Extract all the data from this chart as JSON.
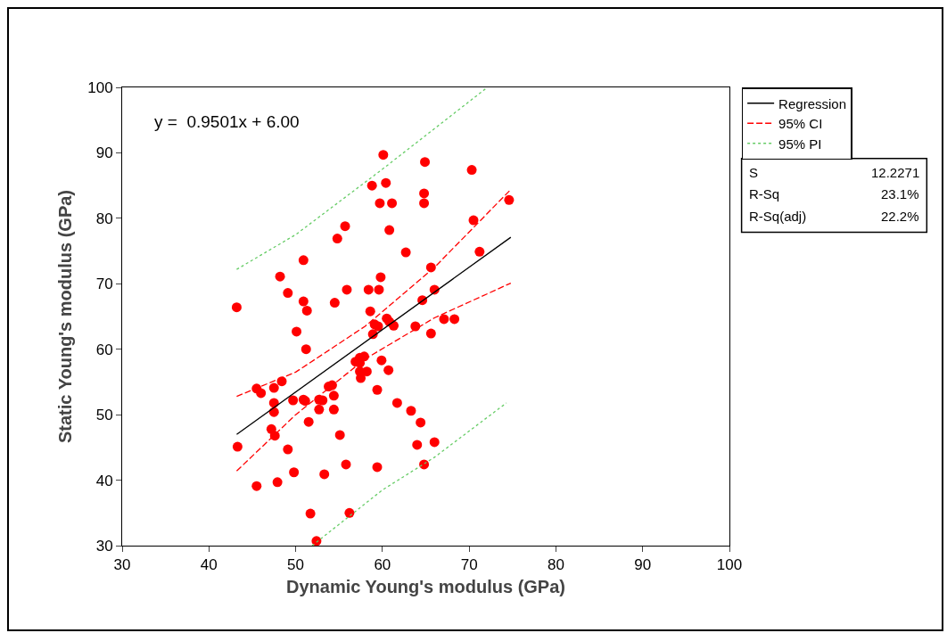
{
  "chart_data": {
    "type": "scatter",
    "xlabel": "Dynamic Young's modulus (GPa)",
    "ylabel": "Static Young's modulus (GPa)",
    "xlim": [
      30,
      100
    ],
    "xticks": [
      30,
      40,
      50,
      60,
      70,
      80,
      90,
      100
    ],
    "ylim": [
      30,
      100
    ],
    "yticks": [
      30,
      40,
      50,
      60,
      70,
      80,
      90,
      100
    ],
    "grid": false,
    "legend": "top right",
    "annotations": [
      "y =  0.9501x + 6.00",
      "S",
      "12.2271",
      "R-Sq",
      "23.1%",
      "R-Sq(adj)",
      "22.2%"
    ],
    "series": [
      {
        "marker": "circle",
        "color": "#ff0000",
        "x": [
          43.2,
          43.3,
          45.5,
          46.0,
          45.5,
          47.5,
          47.5,
          47.5,
          47.2,
          47.6,
          47.9,
          48.2,
          48.4,
          49.1,
          49.1,
          49.7,
          49.8,
          50.1,
          50.9,
          50.9,
          51.3,
          51.2,
          50.9,
          51.1,
          51.5,
          51.7,
          52.4,
          52.7,
          52.7,
          53.1,
          53.3,
          53.8,
          54.2,
          54.5,
          54.4,
          54.4,
          54.8,
          55.1,
          55.7,
          55.9,
          55.8,
          56.2,
          56.9,
          57.4,
          57.4,
          57.4,
          57.5,
          57.9,
          58.2,
          58.4,
          58.6,
          58.8,
          58.9,
          59.1,
          59.4,
          59.4,
          59.5,
          59.6,
          59.7,
          59.8,
          59.9,
          60.1,
          60.4,
          60.5,
          60.8,
          60.8,
          60.7,
          61.1,
          61.3,
          61.7,
          62.7,
          63.3,
          63.8,
          64.0,
          64.4,
          64.6,
          64.8,
          64.8,
          64.8,
          64.9,
          65.6,
          65.6,
          66.0,
          66.0,
          67.1,
          68.3,
          70.3,
          70.5,
          71.2,
          74.6
        ],
        "values": [
          66.4,
          45.1,
          54.0,
          53.3,
          39.1,
          54.1,
          51.8,
          50.4,
          47.8,
          46.8,
          39.7,
          71.1,
          55.1,
          68.6,
          44.7,
          52.2,
          41.2,
          62.7,
          73.6,
          67.3,
          65.9,
          60.0,
          52.3,
          52.1,
          48.9,
          34.9,
          30.7,
          52.3,
          50.8,
          52.2,
          40.9,
          54.3,
          54.5,
          67.1,
          52.9,
          50.8,
          76.9,
          46.9,
          78.8,
          69.1,
          42.4,
          35.0,
          58.1,
          58.7,
          57.9,
          56.6,
          55.6,
          58.9,
          56.6,
          69.1,
          65.8,
          85.0,
          62.3,
          63.8,
          53.8,
          42.0,
          63.5,
          69.1,
          82.3,
          71.0,
          58.3,
          89.7,
          85.4,
          64.7,
          64.2,
          78.2,
          56.8,
          82.3,
          63.6,
          51.8,
          74.8,
          50.6,
          63.5,
          45.4,
          48.8,
          67.5,
          42.4,
          83.8,
          82.3,
          88.6,
          72.5,
          62.4,
          69.1,
          45.8,
          64.6,
          64.6,
          87.4,
          79.7,
          74.9,
          82.8
        ]
      },
      {
        "type": "line",
        "name": "Regression",
        "color": "#000000",
        "line_style": "solid",
        "x": [
          43.2,
          74.8
        ],
        "values": [
          47.0,
          77.1
        ]
      },
      {
        "type": "line",
        "name": "95% CI",
        "color": "#ff0000",
        "line_style": "dashed",
        "x": [
          43.2,
          50,
          58,
          66,
          74.8
        ],
        "values": [
          52.8,
          56.5,
          63.5,
          72.5,
          84.4
        ]
      },
      {
        "type": "line",
        "color": "#ff0000",
        "line_style": "dashed",
        "x": [
          43.2,
          50,
          58,
          66,
          74.8
        ],
        "values": [
          41.4,
          50.0,
          58.5,
          64.8,
          70.1
        ]
      },
      {
        "type": "line",
        "name": "95% PI",
        "color": "#66cc66",
        "line_style": "dotted",
        "x": [
          43.2,
          50,
          60,
          72.1
        ],
        "values": [
          72.2,
          77.5,
          87.5,
          100
        ]
      },
      {
        "type": "line",
        "color": "#66cc66",
        "line_style": "dotted",
        "x": [
          51.9,
          60,
          66,
          74.3
        ],
        "values": [
          30,
          38.5,
          43.5,
          51.8
        ]
      }
    ]
  }
}
